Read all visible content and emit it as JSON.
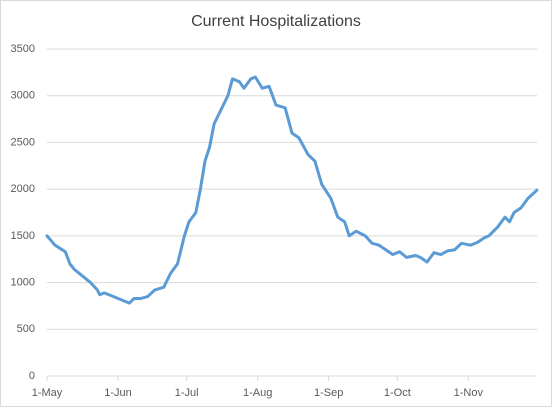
{
  "chart_data": {
    "type": "line",
    "title": "Current Hospitalizations",
    "x": [
      0,
      3.5,
      8,
      10,
      12,
      15,
      19,
      22,
      23,
      25,
      28,
      32,
      36,
      38,
      41,
      44,
      47,
      51,
      54,
      57,
      60,
      62,
      65,
      67,
      69,
      71,
      73,
      76,
      79,
      81,
      84,
      86,
      89,
      91,
      94,
      97,
      100,
      104,
      107,
      110,
      114,
      117,
      120,
      124,
      127,
      130,
      132,
      135,
      139,
      142,
      145,
      148,
      151,
      154,
      157,
      161,
      163,
      166,
      169,
      172,
      175,
      178,
      181,
      185,
      188,
      191,
      193,
      197,
      200,
      202,
      204,
      207,
      210,
      214
    ],
    "series": [
      {
        "name": "Current Hospitalizations",
        "color": "#5b9bd5",
        "values": [
          1500,
          1400,
          1330,
          1200,
          1140,
          1080,
          1000,
          920,
          870,
          890,
          860,
          820,
          780,
          830,
          830,
          850,
          920,
          950,
          1100,
          1200,
          1500,
          1650,
          1750,
          2000,
          2300,
          2450,
          2700,
          2850,
          3000,
          3180,
          3150,
          3080,
          3180,
          3200,
          3080,
          3100,
          2900,
          2870,
          2600,
          2550,
          2370,
          2300,
          2050,
          1900,
          1700,
          1650,
          1500,
          1550,
          1500,
          1420,
          1400,
          1350,
          1300,
          1330,
          1270,
          1290,
          1270,
          1220,
          1320,
          1300,
          1340,
          1350,
          1420,
          1400,
          1430,
          1480,
          1500,
          1600,
          1700,
          1650,
          1750,
          1800,
          1900,
          1990
        ]
      }
    ],
    "xlim": [
      0,
      214
    ],
    "xticks": [
      {
        "value": 0,
        "label": "1-May"
      },
      {
        "value": 31,
        "label": "1-Jun"
      },
      {
        "value": 61,
        "label": "1-Jul"
      },
      {
        "value": 92,
        "label": "1-Aug"
      },
      {
        "value": 123,
        "label": "1-Sep"
      },
      {
        "value": 153,
        "label": "1-Oct"
      },
      {
        "value": 184,
        "label": "1-Nov"
      }
    ],
    "ylim": [
      0,
      3500
    ],
    "yticks": [
      0,
      500,
      1000,
      1500,
      2000,
      2500,
      3000,
      3500
    ],
    "grid": true
  }
}
